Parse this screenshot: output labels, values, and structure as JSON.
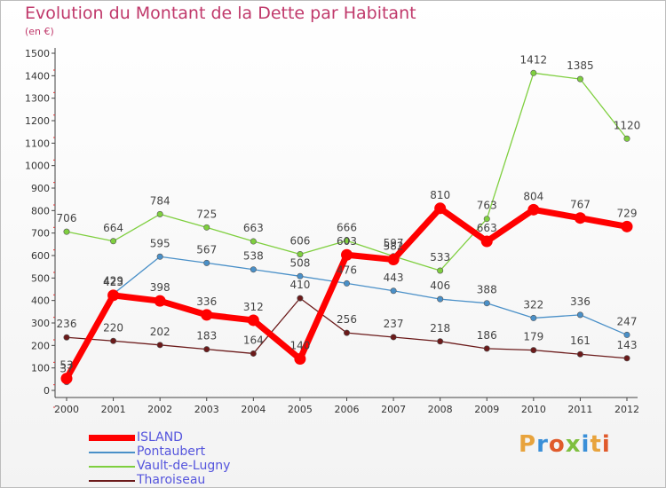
{
  "header": {
    "title": "Evolution du Montant de la Dette par Habitant",
    "unit": "(en €)"
  },
  "brand": {
    "text": "Proxiti",
    "colors": [
      "#e8a33c",
      "#3a8fd8",
      "#e05a2b",
      "#7fbf3f",
      "#3a8fd8",
      "#e8a33c",
      "#e05a2b"
    ]
  },
  "chart_data": {
    "type": "line",
    "title": "Evolution du Montant de la Dette par Habitant",
    "ylabel": "(en €)",
    "xlabel": "",
    "categories": [
      "2000",
      "2001",
      "2002",
      "2003",
      "2004",
      "2005",
      "2006",
      "2007",
      "2008",
      "2009",
      "2010",
      "2011",
      "2012"
    ],
    "ylim": [
      0,
      1500
    ],
    "yticks": [
      0,
      100,
      200,
      300,
      400,
      500,
      600,
      700,
      800,
      900,
      1000,
      1100,
      1200,
      1300,
      1400,
      1500
    ],
    "grid": false,
    "legend": "bottom-left",
    "series": [
      {
        "name": "ISLAND",
        "color": "#ff0000",
        "values": [
          53,
          423,
          398,
          336,
          312,
          140,
          603,
          582,
          810,
          663,
          804,
          767,
          729
        ]
      },
      {
        "name": "Pontaubert",
        "color": "#4a90c8",
        "values": [
          37,
          429,
          595,
          567,
          538,
          508,
          476,
          443,
          406,
          388,
          322,
          336,
          247
        ]
      },
      {
        "name": "Vault-de-Lugny",
        "color": "#7fcf3f",
        "values": [
          706,
          664,
          784,
          725,
          663,
          606,
          666,
          597,
          533,
          763,
          1412,
          1385,
          1120
        ]
      },
      {
        "name": "Tharoiseau",
        "color": "#6b1a1a",
        "values": [
          236,
          220,
          202,
          183,
          164,
          410,
          256,
          237,
          218,
          186,
          179,
          161,
          143
        ]
      }
    ]
  }
}
